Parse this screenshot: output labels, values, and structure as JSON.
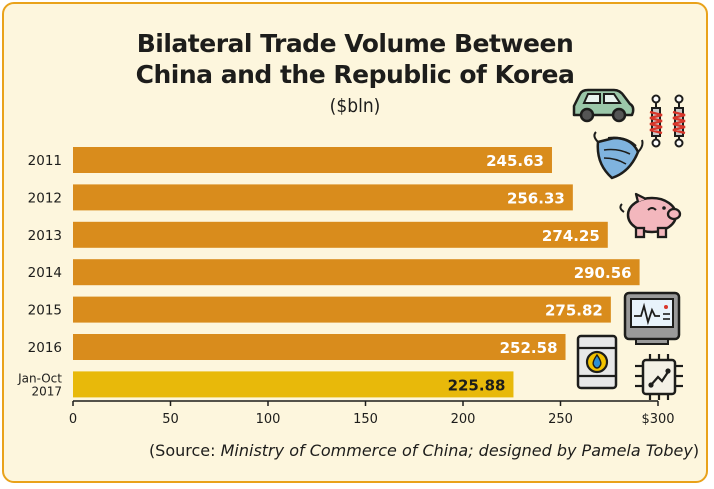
{
  "title_line1": "Bilateral Trade Volume Between",
  "title_line2": "China and the Republic of Korea",
  "unit": "($bln)",
  "source_prefix": "(Source: ",
  "source_italic": "Ministry of Commerce of China; designed by Pamela Tobey",
  "source_suffix": ")",
  "colors": {
    "background": "#fdf6dd",
    "border": "#e9a21a",
    "bar": "#d98c1c",
    "bar_highlight": "#e8b90a",
    "text": "#1d1d1b"
  },
  "icons": [
    "car-icon",
    "shock-absorber-icon",
    "mask-icon",
    "piggy-bank-icon",
    "monitor-icon",
    "oil-barrel-icon",
    "circuit-chip-icon"
  ],
  "chart_data": {
    "type": "bar",
    "orientation": "horizontal",
    "categories": [
      "2011",
      "2012",
      "2013",
      "2014",
      "2015",
      "2016",
      "Jan-Oct\n2017"
    ],
    "values": [
      245.63,
      256.33,
      274.25,
      290.56,
      275.82,
      252.58,
      225.88
    ],
    "value_labels": [
      "245.63",
      "256.33",
      "274.25",
      "290.56",
      "275.82",
      "252.58",
      "225.88"
    ],
    "highlight_index": 6,
    "xlim": [
      0,
      300
    ],
    "xticks": [
      0,
      50,
      100,
      150,
      200,
      250,
      300
    ],
    "xtick_labels": [
      "0",
      "50",
      "100",
      "150",
      "200",
      "250",
      "$300"
    ],
    "grid": false
  }
}
